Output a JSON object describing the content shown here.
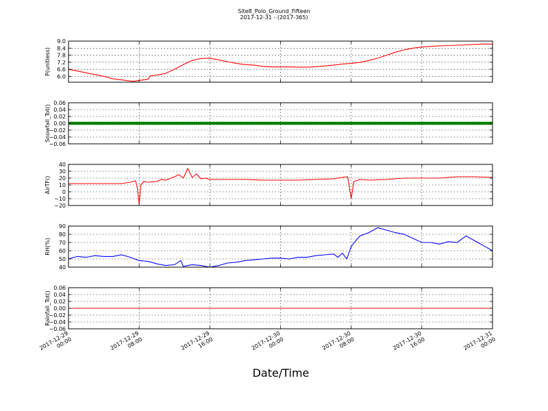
{
  "figure": {
    "title_line1": "Site8_Polo_Ground_Fifteen",
    "title_line2": "2017-12-31 - (2017-365)",
    "xlabel": "Date/Time",
    "x_ticks": [
      {
        "d": "2017-12-29",
        "t": "00:00",
        "h": 0
      },
      {
        "d": "2017-12-29",
        "t": "08:00",
        "h": 8
      },
      {
        "d": "2017-12-29",
        "t": "16:00",
        "h": 16
      },
      {
        "d": "2017-12-30",
        "t": "00:00",
        "h": 24
      },
      {
        "d": "2017-12-30",
        "t": "08:00",
        "h": 32
      },
      {
        "d": "2017-12-30",
        "t": "16:00",
        "h": 40
      },
      {
        "d": "2017-12-31",
        "t": "00:00",
        "h": 48
      }
    ],
    "xlim_hours": [
      0,
      48
    ]
  },
  "chart_data": [
    {
      "type": "line",
      "ylabel": "P(unitless)",
      "ylim": [
        5.5,
        9.0
      ],
      "yticks": [
        6.0,
        6.6,
        7.2,
        7.8,
        8.4,
        9.0
      ],
      "tick_labels": [
        "6.0",
        "6.6",
        "7.2",
        "7.8",
        "8.4",
        "9.0"
      ],
      "grid": true,
      "color": "#ff0000",
      "x": [
        0,
        1,
        2,
        3,
        4,
        5,
        6,
        7,
        7.5,
        8,
        9,
        9.3,
        10,
        11,
        12,
        13,
        14,
        15,
        16,
        17,
        18,
        19,
        20,
        21,
        22,
        23,
        24,
        25,
        26,
        27,
        28,
        29,
        30,
        31,
        32,
        33,
        34,
        35,
        36,
        37,
        38,
        39,
        40,
        41,
        42,
        43,
        44,
        45,
        46,
        47,
        48
      ],
      "y": [
        6.6,
        6.45,
        6.3,
        6.15,
        6.0,
        5.8,
        5.7,
        5.6,
        5.58,
        5.65,
        5.75,
        6.05,
        6.1,
        6.25,
        6.6,
        7.0,
        7.35,
        7.52,
        7.55,
        7.4,
        7.25,
        7.1,
        7.0,
        6.95,
        6.85,
        6.8,
        6.8,
        6.8,
        6.78,
        6.78,
        6.82,
        6.88,
        6.95,
        7.05,
        7.1,
        7.2,
        7.35,
        7.55,
        7.8,
        8.05,
        8.25,
        8.4,
        8.5,
        8.55,
        8.6,
        8.62,
        8.65,
        8.68,
        8.72,
        8.75,
        8.75
      ]
    },
    {
      "type": "scatter",
      "ylabel": "Snowfall_Tot()",
      "ylim": [
        -0.06,
        0.06
      ],
      "yticks": [
        -0.06,
        -0.04,
        -0.02,
        0.0,
        0.02,
        0.04,
        0.06
      ],
      "tick_labels": [
        "−0.06",
        "−0.04",
        "−0.02",
        "0.00",
        "0.02",
        "0.04",
        "0.06"
      ],
      "grid": true,
      "color": "#008000",
      "x_range": [
        0,
        48
      ],
      "constant_value": 0.0
    },
    {
      "type": "line",
      "ylabel": "AirTF()",
      "ylim": [
        -20,
        40
      ],
      "yticks": [
        -20,
        -10,
        0,
        10,
        20,
        30,
        40
      ],
      "tick_labels": [
        "−20",
        "−10",
        "0",
        "10",
        "20",
        "30",
        "40"
      ],
      "grid": true,
      "color": "#ff0000",
      "x": [
        0,
        2,
        4,
        6,
        7,
        7.6,
        7.8,
        8.0,
        8.2,
        8.5,
        9,
        10,
        10.5,
        11,
        12,
        12.5,
        13,
        13.5,
        14,
        14.5,
        15,
        15.5,
        16,
        18,
        20,
        22,
        24,
        26,
        28,
        30,
        31,
        31.6,
        31.8,
        32.0,
        32.3,
        33,
        34,
        36,
        38,
        40,
        42,
        44,
        46,
        48
      ],
      "y": [
        12,
        12,
        12,
        12,
        14,
        16,
        5,
        -18,
        10,
        15,
        14,
        15,
        18,
        17,
        22,
        25,
        20,
        34,
        21,
        26,
        19,
        20,
        18,
        18,
        18,
        17,
        17,
        17,
        18,
        19,
        21,
        22,
        6,
        -10,
        15,
        18,
        17,
        18,
        20,
        20,
        20,
        22,
        22,
        21
      ]
    },
    {
      "type": "line",
      "ylabel": "RH(%)",
      "ylim": [
        40,
        90
      ],
      "yticks": [
        40,
        50,
        60,
        70,
        80,
        90
      ],
      "tick_labels": [
        "40",
        "50",
        "60",
        "70",
        "80",
        "90"
      ],
      "grid": true,
      "color": "#0000ff",
      "x": [
        0,
        1,
        2,
        3,
        4,
        5,
        6,
        7,
        8,
        9,
        10,
        11,
        12,
        12.7,
        13,
        14,
        15,
        16,
        17,
        18,
        19,
        20,
        21,
        22,
        23,
        24,
        25,
        26,
        27,
        28,
        29,
        30,
        30.5,
        31,
        31.5,
        32,
        32.5,
        33,
        34,
        35,
        36,
        37,
        38,
        39,
        40,
        41,
        42,
        43,
        44,
        45,
        46,
        47,
        48
      ],
      "y": [
        50,
        53,
        52,
        54,
        53,
        53,
        55,
        52,
        48,
        47,
        44,
        42,
        43,
        48,
        41,
        43,
        42,
        40,
        42,
        45,
        46,
        48,
        49,
        50,
        51,
        51,
        50,
        52,
        52,
        54,
        55,
        56,
        52,
        57,
        50,
        65,
        72,
        78,
        82,
        88,
        85,
        82,
        80,
        75,
        70,
        70,
        68,
        71,
        70,
        78,
        72,
        66,
        60
      ]
    },
    {
      "type": "line",
      "ylabel": "Rainfall_Tot()",
      "ylim": [
        -0.06,
        0.06
      ],
      "yticks": [
        -0.06,
        -0.04,
        -0.02,
        0.0,
        0.02,
        0.04,
        0.06
      ],
      "tick_labels": [
        "−0.06",
        "−0.04",
        "−0.02",
        "0.00",
        "0.02",
        "0.04",
        "0.06"
      ],
      "grid": true,
      "color": "#ff0000",
      "x": [
        0,
        48
      ],
      "y": [
        0.0,
        0.0
      ]
    }
  ]
}
